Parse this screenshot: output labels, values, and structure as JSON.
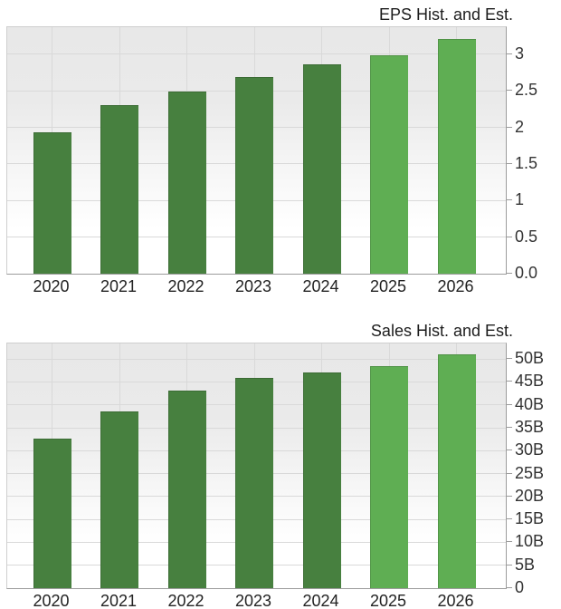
{
  "colors": {
    "historical_bar": "#47803f",
    "estimate_bar": "#5fae53",
    "grid": "#d9d9d9",
    "axis": "#9c9c9c",
    "tick_text": "#333333",
    "title_text": "#1c1c1c"
  },
  "chart_data": [
    {
      "type": "bar",
      "title": "EPS Hist. and Est.",
      "categories": [
        "2020",
        "2021",
        "2022",
        "2023",
        "2024",
        "2025",
        "2026"
      ],
      "values": [
        1.93,
        2.3,
        2.49,
        2.69,
        2.86,
        2.98,
        3.21
      ],
      "bar_styles": [
        "historical",
        "historical",
        "historical",
        "historical",
        "historical",
        "estimate",
        "estimate"
      ],
      "ylim": [
        0,
        3.37
      ],
      "yticks": [
        {
          "value": 3,
          "label": "3"
        },
        {
          "value": 2.5,
          "label": "2.5"
        },
        {
          "value": 2,
          "label": "2"
        },
        {
          "value": 1.5,
          "label": "1.5"
        },
        {
          "value": 1,
          "label": "1"
        },
        {
          "value": 0.5,
          "label": "0.5"
        },
        {
          "value": 0,
          "label": "0.0"
        }
      ],
      "grid": true,
      "legend": false,
      "yaxis_side": "right"
    },
    {
      "type": "bar",
      "title": "Sales Hist. and Est.",
      "categories": [
        "2020",
        "2021",
        "2022",
        "2023",
        "2024",
        "2025",
        "2026"
      ],
      "values": [
        32.6,
        38.5,
        43.1,
        45.8,
        47.1,
        48.4,
        51.1
      ],
      "unit": "B",
      "bar_styles": [
        "historical",
        "historical",
        "historical",
        "historical",
        "historical",
        "estimate",
        "estimate"
      ],
      "ylim": [
        0,
        53.4
      ],
      "yticks": [
        {
          "value": 50,
          "label": "50B"
        },
        {
          "value": 45,
          "label": "45B"
        },
        {
          "value": 40,
          "label": "40B"
        },
        {
          "value": 35,
          "label": "35B"
        },
        {
          "value": 30,
          "label": "30B"
        },
        {
          "value": 25,
          "label": "25B"
        },
        {
          "value": 20,
          "label": "20B"
        },
        {
          "value": 15,
          "label": "15B"
        },
        {
          "value": 10,
          "label": "10B"
        },
        {
          "value": 5,
          "label": "5B"
        },
        {
          "value": 0,
          "label": "0"
        }
      ],
      "grid": true,
      "legend": false,
      "yaxis_side": "right"
    }
  ]
}
